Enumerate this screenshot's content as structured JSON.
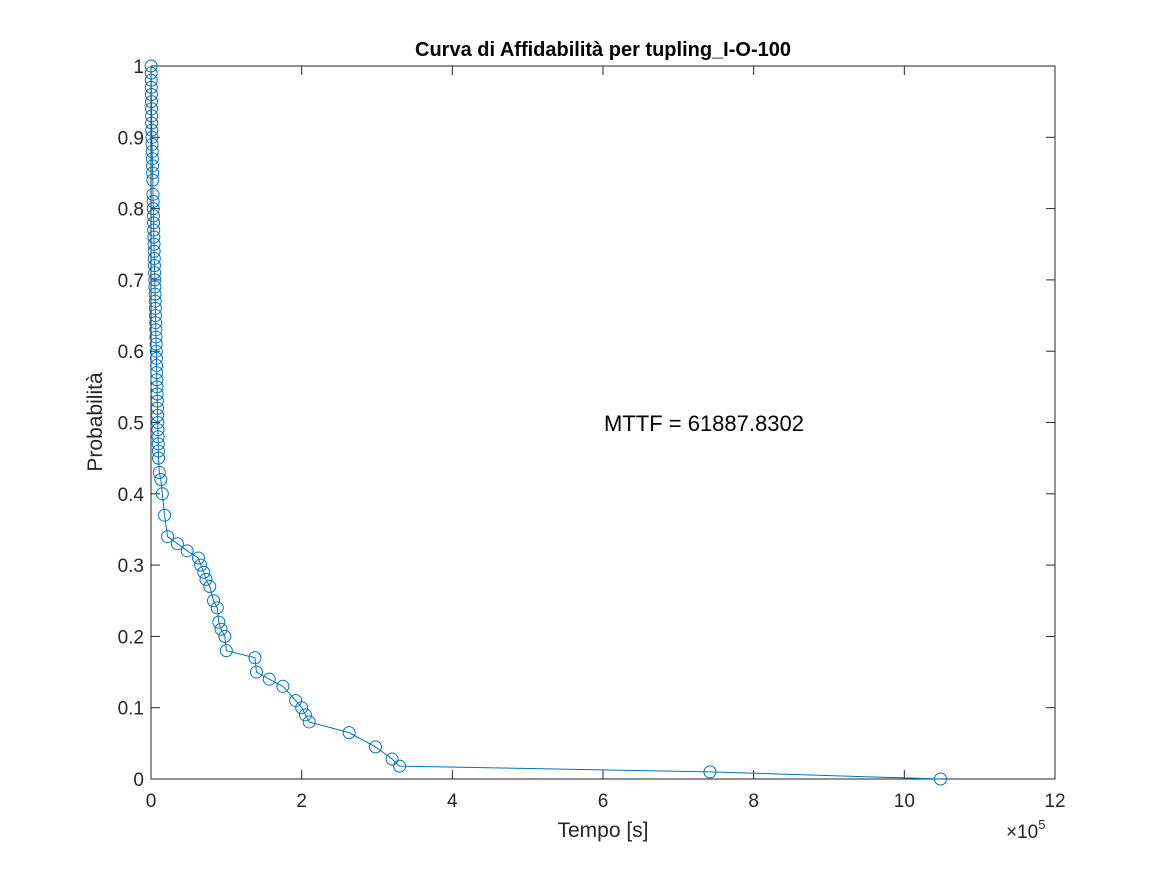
{
  "chart_data": {
    "type": "line",
    "title": "Curva di Affidabilità per tupling_I-O-100",
    "xlabel": "Tempo [s]",
    "ylabel": "Probabilità",
    "xlim": [
      0,
      12
    ],
    "ylim": [
      0,
      1
    ],
    "x_scale_multiplier": "×10",
    "x_scale_exponent": "5",
    "xticks": [
      0,
      2,
      4,
      6,
      8,
      10,
      12
    ],
    "xtick_labels": [
      "0",
      "2",
      "4",
      "6",
      "8",
      "10",
      "12"
    ],
    "yticks": [
      0,
      0.1,
      0.2,
      0.3,
      0.4,
      0.5,
      0.6,
      0.7,
      0.8,
      0.9,
      1
    ],
    "ytick_labels": [
      "0",
      "0.1",
      "0.2",
      "0.3",
      "0.4",
      "0.5",
      "0.6",
      "0.7",
      "0.8",
      "0.9",
      "1"
    ],
    "grid": false,
    "marker": "circle",
    "color": "#0072BD",
    "annotation": "MTTF = 61887.8302",
    "series": [
      {
        "x": [
          0.001,
          0.002,
          0.003,
          0.004,
          0.005,
          0.006,
          0.007,
          0.008,
          0.009,
          0.01,
          0.012,
          0.014,
          0.016,
          0.018,
          0.02,
          0.022,
          0.024,
          0.026,
          0.028,
          0.03,
          0.032,
          0.034,
          0.036,
          0.038,
          0.04,
          0.042,
          0.044,
          0.046,
          0.048,
          0.05,
          0.052,
          0.054,
          0.056,
          0.058,
          0.06,
          0.062,
          0.064,
          0.066,
          0.068,
          0.07,
          0.072,
          0.074,
          0.076,
          0.078,
          0.08,
          0.082,
          0.084,
          0.086,
          0.088,
          0.09,
          0.092,
          0.094,
          0.096,
          0.098,
          0.1,
          0.11,
          0.13,
          0.15,
          0.18,
          0.22,
          0.35,
          0.48,
          0.63,
          0.66,
          0.7,
          0.73,
          0.78,
          0.83,
          0.88,
          0.9,
          0.93,
          0.98,
          1.0,
          1.38,
          1.4,
          1.57,
          1.75,
          1.92,
          2.0,
          2.05,
          2.1,
          2.63,
          2.98,
          3.2,
          3.3,
          7.42,
          10.48
        ],
        "y": [
          1.0,
          0.99,
          0.98,
          0.97,
          0.96,
          0.95,
          0.94,
          0.93,
          0.92,
          0.91,
          0.9,
          0.89,
          0.88,
          0.87,
          0.86,
          0.85,
          0.84,
          0.82,
          0.81,
          0.8,
          0.79,
          0.78,
          0.77,
          0.76,
          0.75,
          0.74,
          0.73,
          0.72,
          0.71,
          0.7,
          0.69,
          0.68,
          0.67,
          0.66,
          0.65,
          0.64,
          0.63,
          0.62,
          0.61,
          0.6,
          0.59,
          0.58,
          0.57,
          0.56,
          0.55,
          0.54,
          0.53,
          0.52,
          0.51,
          0.5,
          0.49,
          0.48,
          0.47,
          0.46,
          0.45,
          0.43,
          0.42,
          0.4,
          0.37,
          0.34,
          0.33,
          0.32,
          0.31,
          0.3,
          0.29,
          0.28,
          0.27,
          0.25,
          0.24,
          0.22,
          0.21,
          0.2,
          0.18,
          0.17,
          0.15,
          0.14,
          0.13,
          0.11,
          0.1,
          0.09,
          0.08,
          0.065,
          0.045,
          0.028,
          0.018,
          0.01,
          0.0
        ]
      }
    ]
  }
}
